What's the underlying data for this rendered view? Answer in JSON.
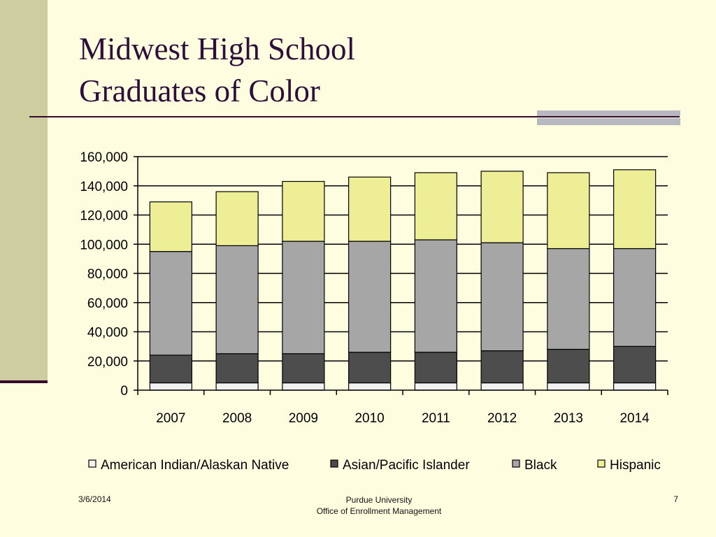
{
  "slide": {
    "title_line1": "Midwest High School",
    "title_line2": "Graduates of Color"
  },
  "footer": {
    "date": "3/6/2014",
    "org_line1": "Purdue University",
    "org_line2": "Office of Enrollment Management",
    "page": "7"
  },
  "chart_data": {
    "type": "bar",
    "stacked": true,
    "categories": [
      "2007",
      "2008",
      "2009",
      "2010",
      "2011",
      "2012",
      "2013",
      "2014"
    ],
    "ylim": [
      0,
      160000
    ],
    "yticks": [
      0,
      20000,
      40000,
      60000,
      80000,
      100000,
      120000,
      140000,
      160000
    ],
    "ytick_labels": [
      "0",
      "20,000",
      "40,000",
      "60,000",
      "80,000",
      "100,000",
      "120,000",
      "140,000",
      "160,000"
    ],
    "grid": true,
    "legend_position": "bottom",
    "series": [
      {
        "name": "American Indian/Alaskan Native",
        "color": "#F2F2F2",
        "values": [
          5000,
          5000,
          5000,
          5000,
          5000,
          5000,
          5000,
          5000
        ]
      },
      {
        "name": "Asian/Pacific Islander",
        "color": "#4D4D4D",
        "values": [
          19000,
          20000,
          20000,
          21000,
          21000,
          22000,
          23000,
          25000
        ]
      },
      {
        "name": "Black",
        "color": "#A6A6A6",
        "values": [
          71000,
          74000,
          77000,
          76000,
          77000,
          74000,
          69000,
          67000
        ]
      },
      {
        "name": "Hispanic",
        "color": "#EEEE96",
        "values": [
          34000,
          37000,
          41000,
          44000,
          46000,
          49000,
          52000,
          54000
        ]
      }
    ]
  }
}
